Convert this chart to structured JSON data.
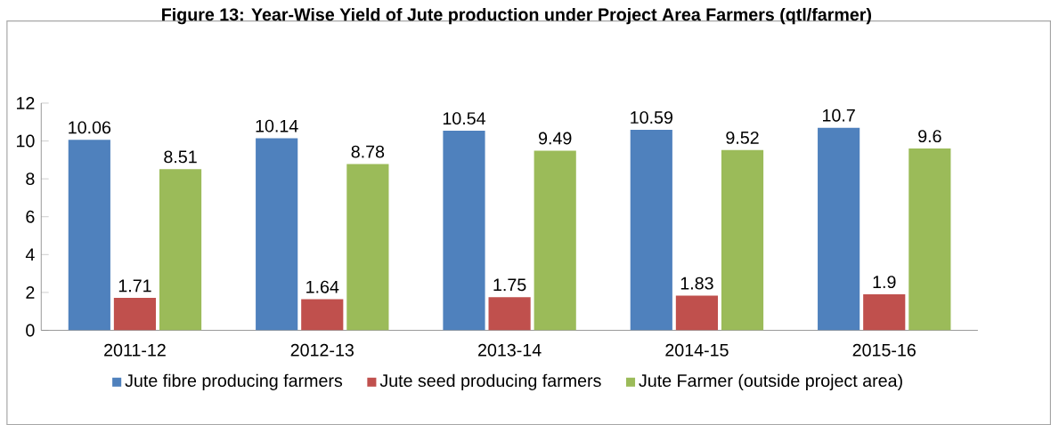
{
  "chart_data": {
    "type": "bar",
    "title": "Figure 13: Year-Wise Yield of Jute production under Project Area Farmers (qtl/farmer)",
    "categories": [
      "2011-12",
      "2012-13",
      "2013-14",
      "2014-15",
      "2015-16"
    ],
    "series": [
      {
        "name": "Jute fibre producing farmers",
        "color": "#4f81bd",
        "values": [
          10.06,
          10.14,
          10.54,
          10.59,
          10.7
        ]
      },
      {
        "name": "Jute seed producing farmers",
        "color": "#c0504d",
        "values": [
          1.71,
          1.64,
          1.75,
          1.83,
          1.9
        ]
      },
      {
        "name": "Jute Farmer (outside project area)",
        "color": "#9bbb59",
        "values": [
          8.51,
          8.78,
          9.49,
          9.52,
          9.6
        ]
      }
    ],
    "ylim": [
      0,
      12
    ],
    "yticks": [
      0,
      2,
      4,
      6,
      8,
      10,
      12
    ],
    "grid": false,
    "legend": "bottom",
    "data_labels": true
  }
}
